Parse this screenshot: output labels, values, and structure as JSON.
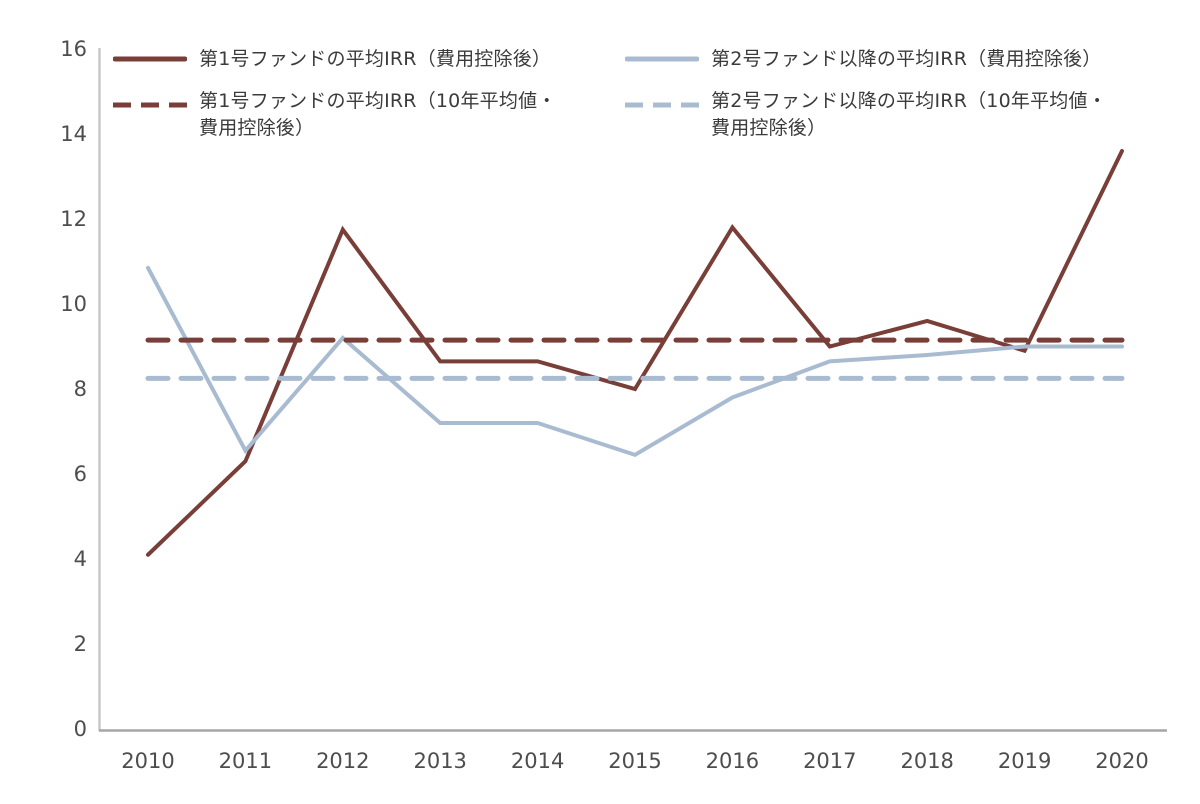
{
  "chart_data": {
    "type": "line",
    "x": [
      2010,
      2011,
      2012,
      2013,
      2014,
      2015,
      2016,
      2017,
      2018,
      2019,
      2020
    ],
    "series": [
      {
        "name": "第1号ファンドの平均IRR（費用控除後）",
        "style": "solid",
        "color": "#7a3e38",
        "values": [
          4.1,
          6.3,
          11.75,
          8.65,
          8.65,
          8.0,
          11.8,
          9.0,
          9.6,
          8.9,
          13.6
        ]
      },
      {
        "name": "第2号ファンド以降の平均IRR（費用控除後）",
        "style": "solid",
        "color": "#a8bbd1",
        "values": [
          10.85,
          6.55,
          9.2,
          7.2,
          7.2,
          6.45,
          7.8,
          8.65,
          8.8,
          9.0,
          9.0
        ]
      },
      {
        "name": "第1号ファンドの平均IRR（10年平均値・費用控除後）",
        "style": "dashed",
        "color": "#7a3e38",
        "values": [
          9.15,
          9.15,
          9.15,
          9.15,
          9.15,
          9.15,
          9.15,
          9.15,
          9.15,
          9.15,
          9.15
        ]
      },
      {
        "name": "第2号ファンド以降の平均IRR（10年平均値・費用控除後）",
        "style": "dashed",
        "color": "#a8bbd1",
        "values": [
          8.25,
          8.25,
          8.25,
          8.25,
          8.25,
          8.25,
          8.25,
          8.25,
          8.25,
          8.25,
          8.25
        ]
      }
    ],
    "ylim": [
      0,
      16
    ],
    "ytick_interval": 2,
    "grid": false,
    "legend_position": "top"
  },
  "axes": {
    "y_tick_labels": [
      "0",
      "2",
      "4",
      "6",
      "8",
      "10",
      "12",
      "14",
      "16"
    ],
    "x_tick_labels": [
      "2010",
      "2011",
      "2012",
      "2013",
      "2014",
      "2015",
      "2016",
      "2017",
      "2018",
      "2019",
      "2020"
    ],
    "y_axis_color": "#c8c8c8",
    "x_axis_color": "#a6a6a6",
    "tick_label_color": "#4d4d4d"
  },
  "legend": {
    "items": [
      {
        "line1": "第1号ファンドの平均IRR（費用控除後）",
        "style": "solid",
        "color": "#7a3e38"
      },
      {
        "line1": "第1号ファンドの平均IRR（10年平均値・",
        "line2": "費用控除後）",
        "style": "dashed",
        "color": "#7a3e38"
      },
      {
        "line1": "第2号ファンド以降の平均IRR（費用控除後）",
        "style": "solid",
        "color": "#a8bbd1"
      },
      {
        "line1": "第2号ファンド以降の平均IRR（10年平均値・",
        "line2": "費用控除後）",
        "style": "dashed",
        "color": "#a8bbd1"
      }
    ]
  }
}
